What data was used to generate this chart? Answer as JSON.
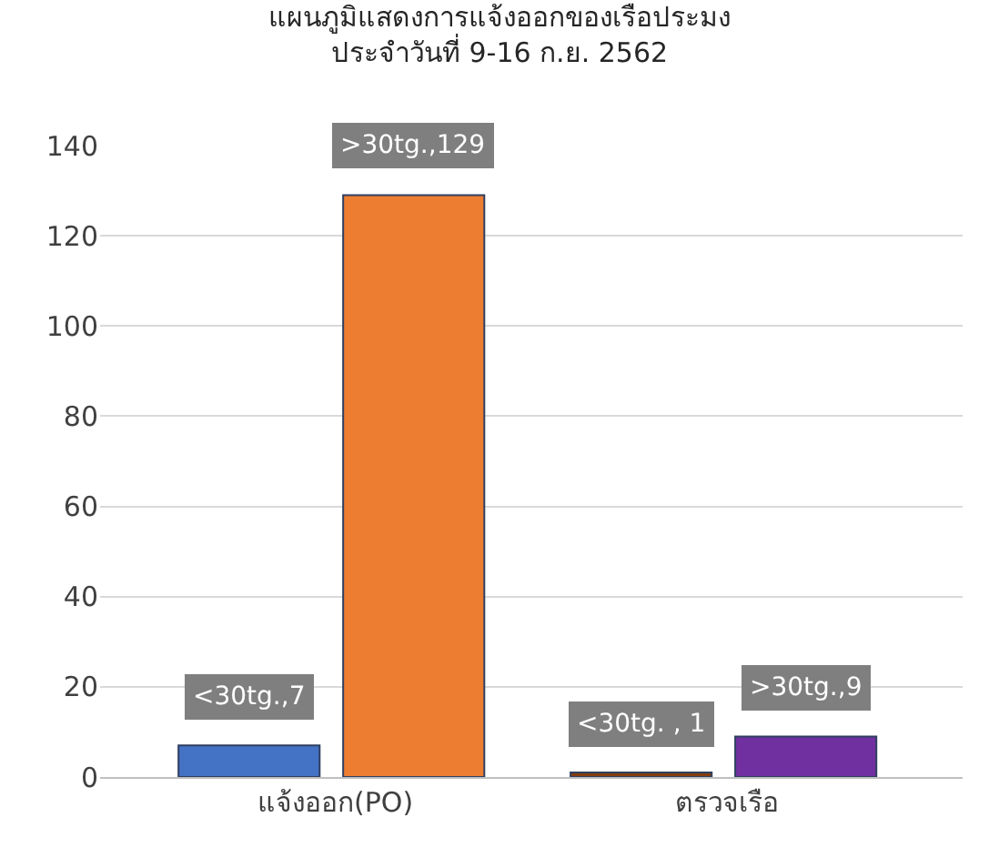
{
  "chart_data": {
    "type": "bar",
    "title": "แผนภูมิแสดงการแจ้งออกของเรือประมง\nประจำวันที่ 9-16 ก.ย. 2562",
    "categories": [
      "แจ้งออก(PO)",
      "ตรวจเรือ"
    ],
    "series": [
      {
        "colors": [
          "#4472c4",
          "#843c0c"
        ],
        "values": [
          7,
          1
        ],
        "value_labels": [
          "<30tg.,7",
          "<30tg. , 1"
        ]
      },
      {
        "colors": [
          "#ed7d31",
          "#7030a0"
        ],
        "values": [
          129,
          9
        ],
        "value_labels": [
          ">30tg.,129",
          ">30tg.,9"
        ]
      }
    ],
    "ylim": [
      0,
      140
    ],
    "yticks": [
      0,
      20,
      40,
      60,
      80,
      100,
      120,
      140
    ],
    "grid": "y"
  }
}
